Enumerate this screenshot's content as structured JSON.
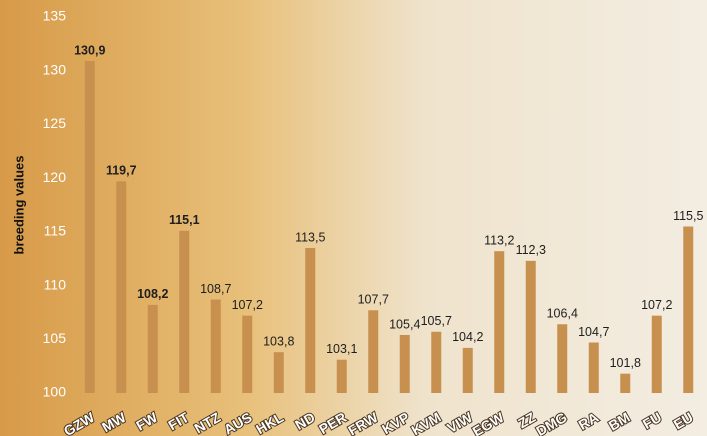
{
  "chart_data": {
    "type": "bar",
    "ylabel": "breeding values",
    "categories": [
      "GZW",
      "MW",
      "FW",
      "FIT",
      "NTZ",
      "AUS",
      "HKL",
      "ND",
      "PER",
      "FRW",
      "KVP",
      "KVM",
      "VIW",
      "EGW",
      "ZZ",
      "DMG",
      "RA",
      "BM",
      "FU",
      "EU"
    ],
    "values": [
      130.9,
      119.7,
      108.2,
      115.1,
      108.7,
      107.2,
      103.8,
      113.5,
      103.1,
      107.7,
      105.4,
      105.7,
      104.2,
      113.2,
      112.3,
      106.4,
      104.7,
      101.8,
      107.2,
      115.5
    ],
    "value_labels": [
      "130,9",
      "119,7",
      "108,2",
      "115,1",
      "108,7",
      "107,2",
      "103,8",
      "113,5",
      "103,1",
      "107,7",
      "105,4",
      "105,7",
      "104,2",
      "113,2",
      "112,3",
      "106,4",
      "104,7",
      "101,8",
      "107,2",
      "115,5"
    ],
    "bold_labels": [
      true,
      true,
      true,
      true,
      false,
      false,
      false,
      false,
      false,
      false,
      false,
      false,
      false,
      false,
      false,
      false,
      false,
      false,
      false,
      false
    ],
    "color": "#c8904f",
    "ylim": [
      100,
      135
    ],
    "yticks": [
      100,
      105,
      110,
      115,
      120,
      125,
      130,
      135
    ],
    "grid": false
  }
}
